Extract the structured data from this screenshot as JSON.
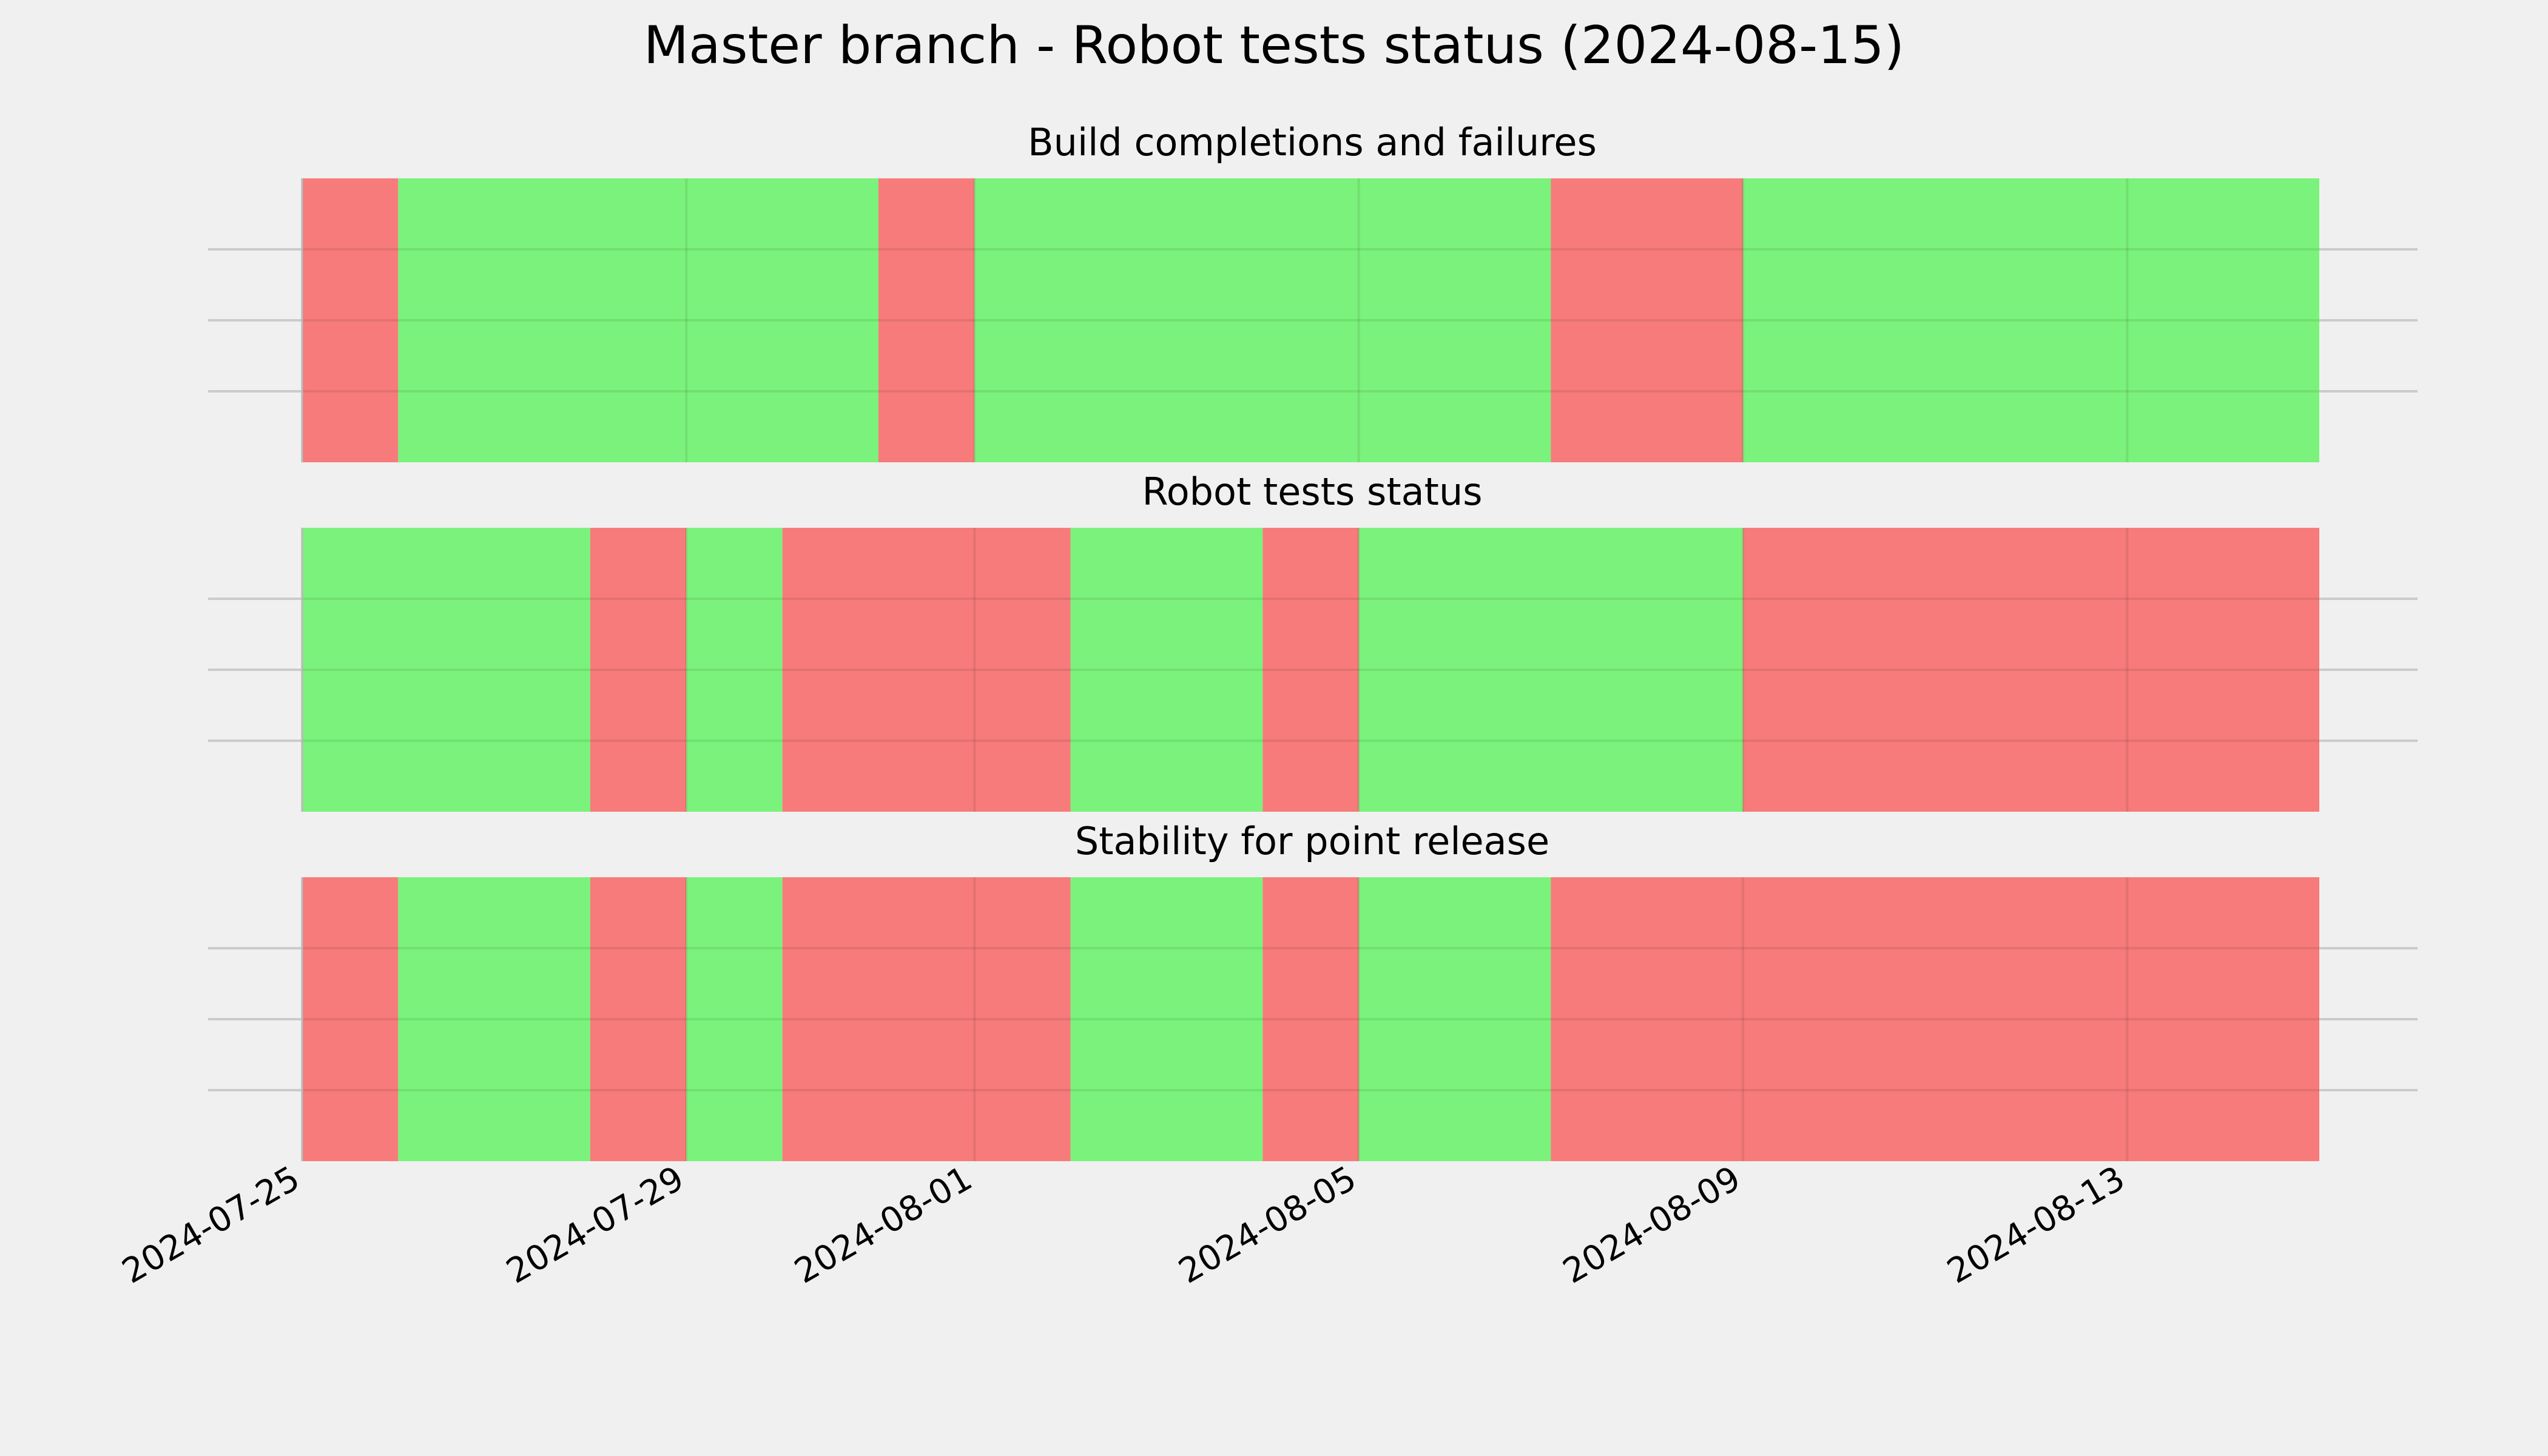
{
  "chart_data": {
    "type": "timeline",
    "title": "Master branch - Robot tests status (2024-08-15)",
    "colors": {
      "pass": "#77f277",
      "fail": "#f77777",
      "background": "#f0f0f0",
      "grid": "#cbcbcb"
    },
    "x_range": [
      "2024-07-25",
      "2024-08-15"
    ],
    "x_ticks": [
      "2024-07-25",
      "2024-07-29",
      "2024-08-01",
      "2024-08-05",
      "2024-08-09",
      "2024-08-13"
    ],
    "grid": true,
    "panels": [
      {
        "title": "Build completions and failures",
        "segments": [
          {
            "start": "2024-07-25",
            "end": "2024-07-26",
            "status": "fail"
          },
          {
            "start": "2024-07-26",
            "end": "2024-07-31",
            "status": "pass"
          },
          {
            "start": "2024-07-31",
            "end": "2024-08-01",
            "status": "fail"
          },
          {
            "start": "2024-08-01",
            "end": "2024-08-07",
            "status": "pass"
          },
          {
            "start": "2024-08-07",
            "end": "2024-08-09",
            "status": "fail"
          },
          {
            "start": "2024-08-09",
            "end": "2024-08-15",
            "status": "pass"
          }
        ]
      },
      {
        "title": "Robot tests status",
        "segments": [
          {
            "start": "2024-07-25",
            "end": "2024-07-28",
            "status": "pass"
          },
          {
            "start": "2024-07-28",
            "end": "2024-07-29",
            "status": "fail"
          },
          {
            "start": "2024-07-29",
            "end": "2024-07-30",
            "status": "pass"
          },
          {
            "start": "2024-07-30",
            "end": "2024-08-02",
            "status": "fail"
          },
          {
            "start": "2024-08-02",
            "end": "2024-08-04",
            "status": "pass"
          },
          {
            "start": "2024-08-04",
            "end": "2024-08-05",
            "status": "fail"
          },
          {
            "start": "2024-08-05",
            "end": "2024-08-09",
            "status": "pass"
          },
          {
            "start": "2024-08-09",
            "end": "2024-08-15",
            "status": "fail"
          }
        ]
      },
      {
        "title": "Stability for point release",
        "segments": [
          {
            "start": "2024-07-25",
            "end": "2024-07-26",
            "status": "fail"
          },
          {
            "start": "2024-07-26",
            "end": "2024-07-28",
            "status": "pass"
          },
          {
            "start": "2024-07-28",
            "end": "2024-07-29",
            "status": "fail"
          },
          {
            "start": "2024-07-29",
            "end": "2024-07-30",
            "status": "pass"
          },
          {
            "start": "2024-07-30",
            "end": "2024-08-02",
            "status": "fail"
          },
          {
            "start": "2024-08-02",
            "end": "2024-08-04",
            "status": "pass"
          },
          {
            "start": "2024-08-04",
            "end": "2024-08-05",
            "status": "fail"
          },
          {
            "start": "2024-08-05",
            "end": "2024-08-07",
            "status": "pass"
          },
          {
            "start": "2024-08-07",
            "end": "2024-08-15",
            "status": "fail"
          }
        ]
      }
    ]
  }
}
